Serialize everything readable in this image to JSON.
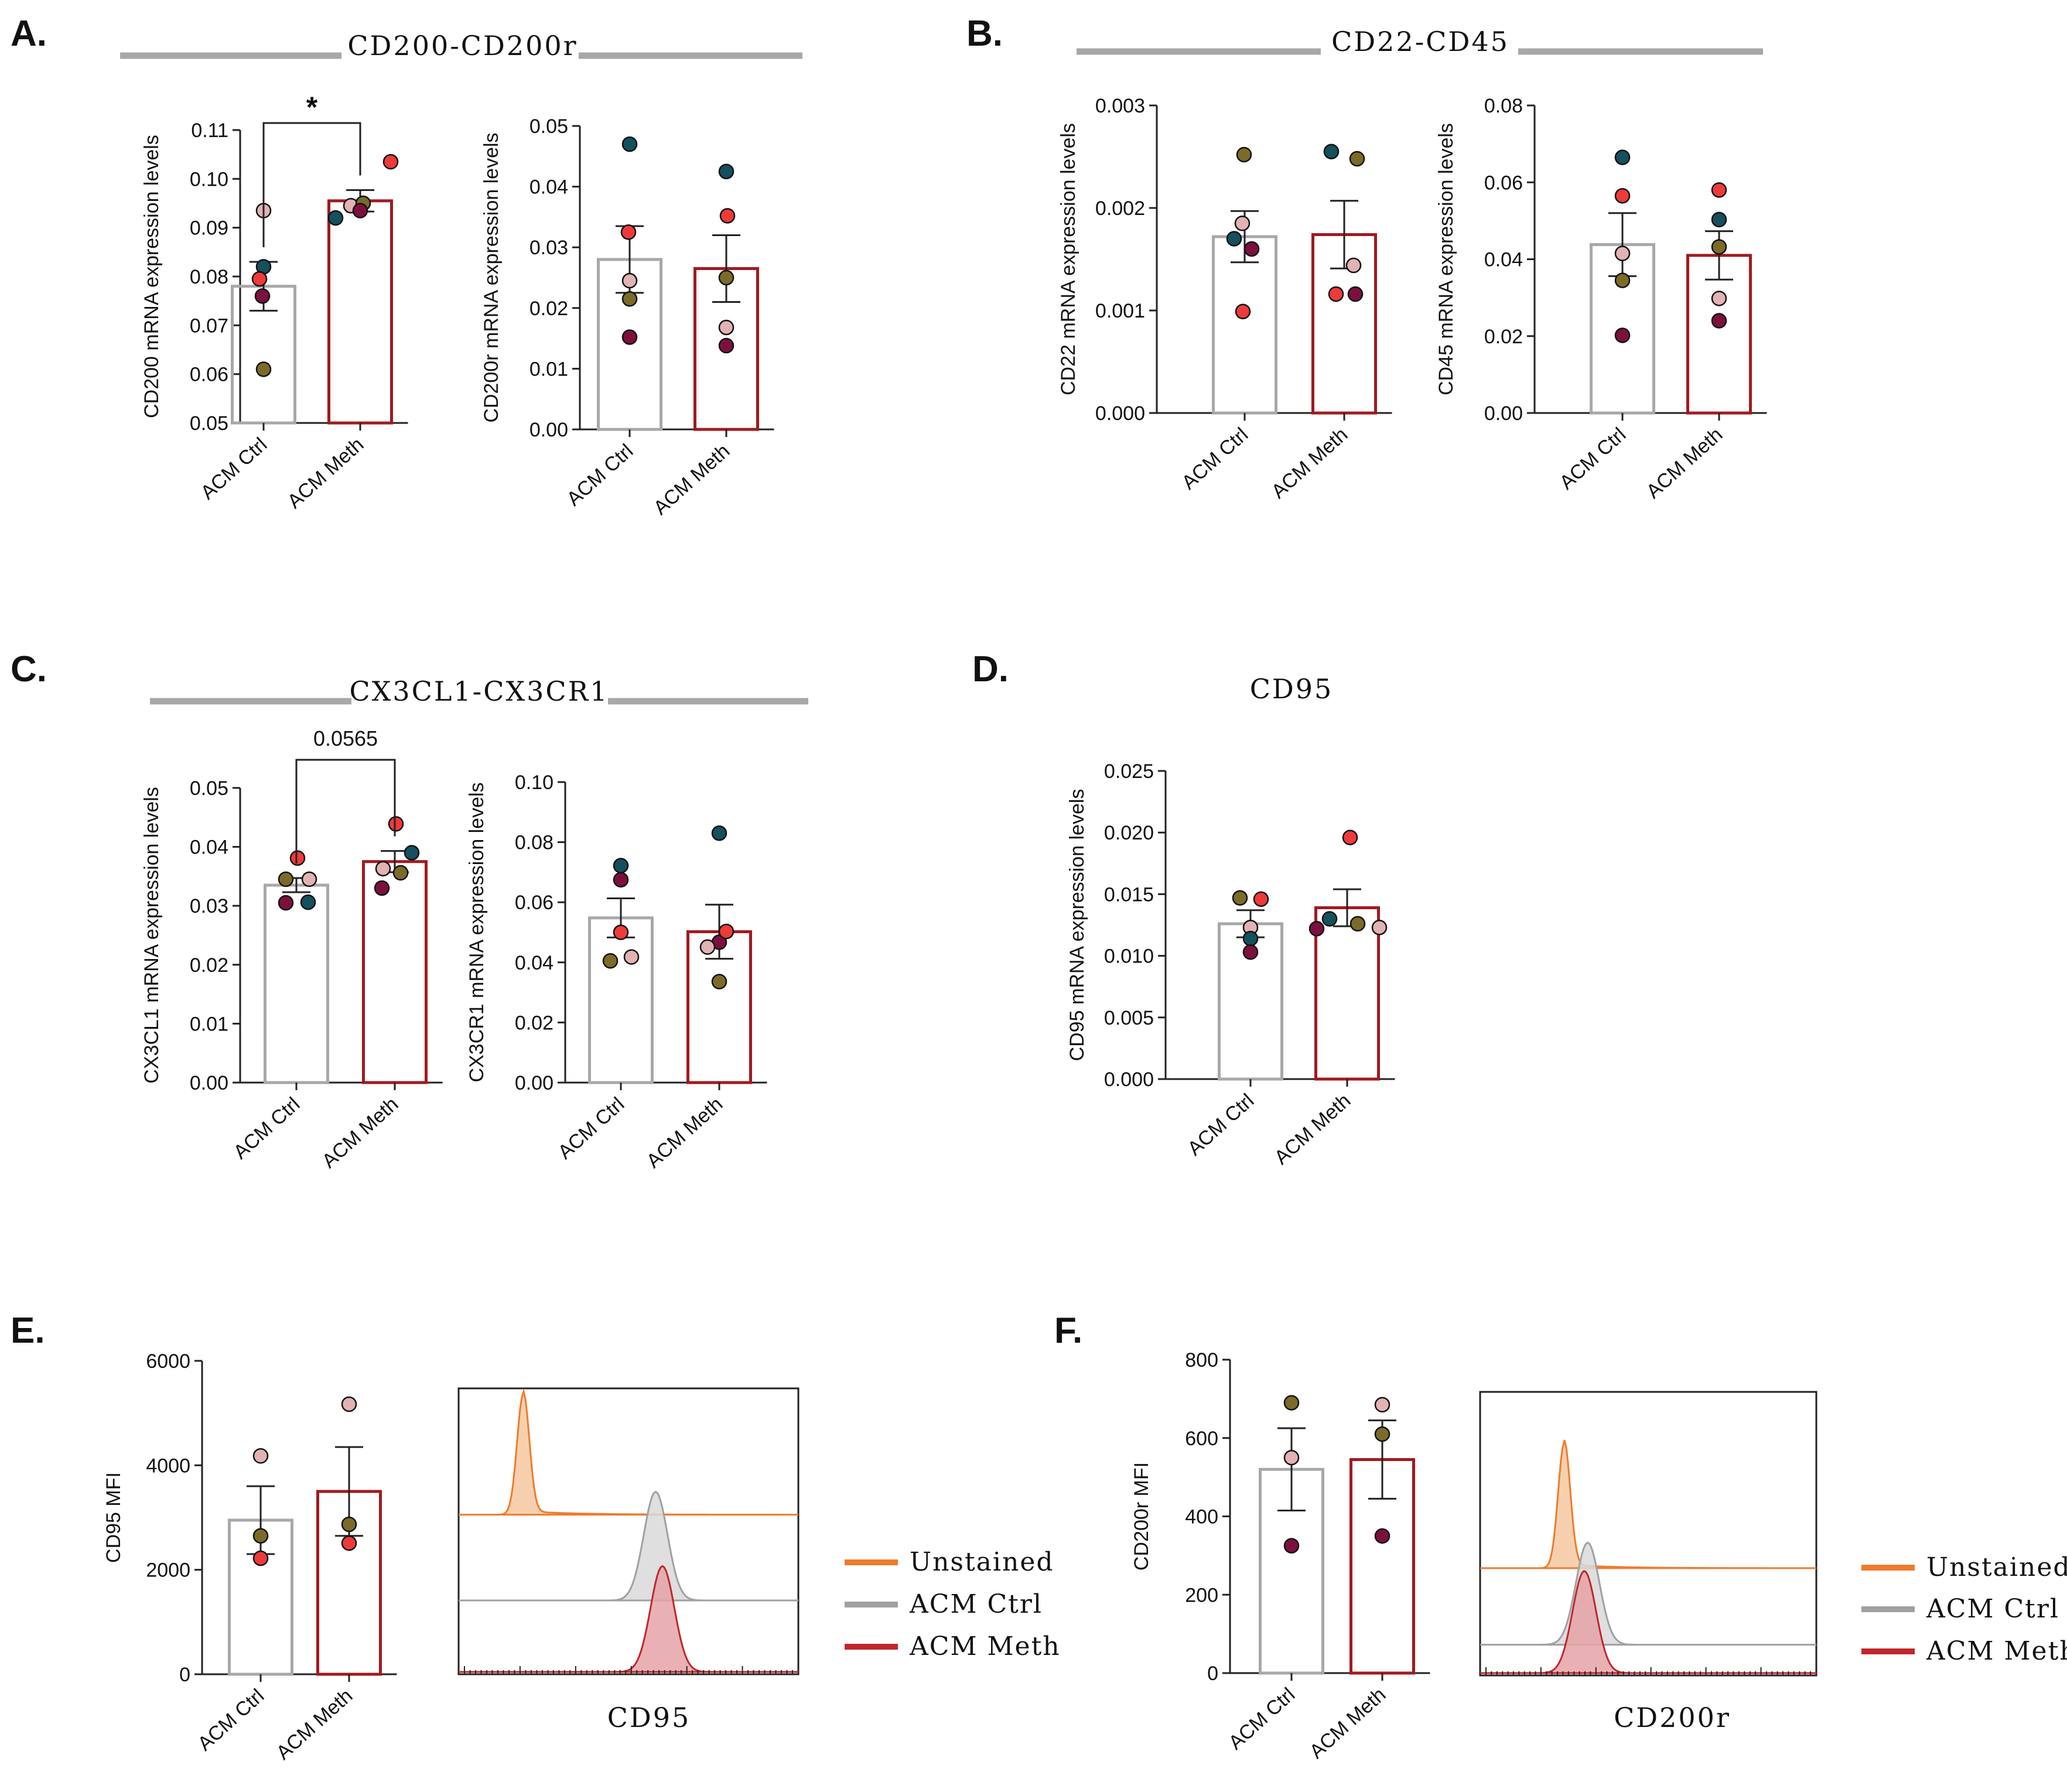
{
  "figure": {
    "panels": [
      {
        "letter": "A."
      },
      {
        "letter": "B."
      },
      {
        "letter": "C."
      },
      {
        "letter": "D."
      },
      {
        "letter": "E."
      },
      {
        "letter": "F."
      }
    ],
    "group_titles": [
      {
        "text": "CD200-CD200r"
      },
      {
        "text": "CD22-CD45"
      },
      {
        "text": "CX3CL1-CX3CR1"
      },
      {
        "text": "CD95"
      }
    ],
    "legends": [
      {
        "items": [
          "Unstained",
          "ACM Ctrl",
          "ACM Meth"
        ]
      },
      {
        "items": [
          "Unstained",
          "ACM Ctrl",
          "ACM Meth"
        ]
      }
    ]
  },
  "colors": {
    "ctrl_bar": "#a8a8a8",
    "meth_bar": "#a11a20",
    "unstained": "#ef7b2d",
    "acm_ctrl_line": "#a0a0a0",
    "acm_meth_line": "#c0272d",
    "dot_teal": "#14505e",
    "dot_red": "#ee3a3a",
    "dot_pink": "#e3b2b2",
    "dot_olive": "#7c6b28",
    "dot_maroon": "#7d0f3f"
  },
  "chart_data": [
    {
      "type": "bar",
      "panel": "A",
      "title": "CD200-CD200r",
      "ylabel": "CD200 mRNA expression levels",
      "categories": [
        "ACM Ctrl",
        "ACM Meth"
      ],
      "ylim": [
        0.05,
        0.11
      ],
      "yticks": [
        "0.05",
        "0.06",
        "0.07",
        "0.08",
        "0.09",
        "0.10",
        "0.11"
      ],
      "values": [
        0.078,
        0.0955
      ],
      "sem": [
        0.005,
        0.0022
      ],
      "points": [
        [
          0.082,
          0.0795,
          0.076,
          0.0935,
          0.061
        ],
        [
          0.092,
          0.0945,
          0.095,
          0.1035,
          0.0935
        ]
      ],
      "significance": {
        "label": "*"
      }
    },
    {
      "type": "bar",
      "panel": "A",
      "ylabel": "CD200r mRNA expression levels",
      "categories": [
        "ACM Ctrl",
        "ACM Meth"
      ],
      "ylim": [
        0,
        0.05
      ],
      "yticks": [
        "0.00",
        "0.01",
        "0.02",
        "0.03",
        "0.04",
        "0.05"
      ],
      "values": [
        0.028,
        0.0265
      ],
      "sem": [
        0.0055,
        0.0055
      ],
      "points": [
        [
          0.047,
          0.0325,
          0.0245,
          0.0215,
          0.0152
        ],
        [
          0.0425,
          0.0352,
          0.025,
          0.0168,
          0.0138
        ]
      ]
    },
    {
      "type": "bar",
      "panel": "B",
      "title": "CD22-CD45",
      "ylabel": "CD22 mRNA expression levels",
      "categories": [
        "ACM Ctrl",
        "ACM Meth"
      ],
      "ylim": [
        0,
        0.003
      ],
      "yticks": [
        "0.000",
        "0.001",
        "0.002",
        "0.003"
      ],
      "values": [
        0.00172,
        0.00174
      ],
      "sem": [
        0.00025,
        0.00033
      ],
      "points": [
        [
          0.0017,
          0.00099,
          0.00185,
          0.00252,
          0.0016
        ],
        [
          0.00255,
          0.00116,
          0.00144,
          0.00248,
          0.00116
        ]
      ]
    },
    {
      "type": "bar",
      "panel": "B",
      "ylabel": "CD45 mRNA expression levels",
      "categories": [
        "ACM Ctrl",
        "ACM Meth"
      ],
      "ylim": [
        0,
        0.08
      ],
      "yticks": [
        "0.00",
        "0.02",
        "0.04",
        "0.06",
        "0.08"
      ],
      "values": [
        0.0438,
        0.041
      ],
      "sem": [
        0.0082,
        0.0063
      ],
      "points": [
        [
          0.0665,
          0.0565,
          0.0415,
          0.0345,
          0.0202
        ],
        [
          0.0503,
          0.058,
          0.0432,
          0.0298,
          0.024
        ]
      ]
    },
    {
      "type": "bar",
      "panel": "C",
      "title": "CX3CL1-CX3CR1",
      "ylabel": "CX3CL1 mRNA expression levels",
      "categories": [
        "ACM Ctrl",
        "ACM Meth"
      ],
      "ylim": [
        0,
        0.05
      ],
      "yticks": [
        "0.00",
        "0.01",
        "0.02",
        "0.03",
        "0.04",
        "0.05"
      ],
      "values": [
        0.0335,
        0.0375
      ],
      "sem": [
        0.0012,
        0.0018
      ],
      "points": [
        [
          0.0345,
          0.0305,
          0.0345,
          0.0381,
          0.0306
        ],
        [
          0.039,
          0.0363,
          0.0439,
          0.033,
          0.0356
        ]
      ],
      "significance": {
        "label": "0.0565"
      }
    },
    {
      "type": "bar",
      "panel": "C",
      "ylabel": "CX3CR1 mRNA expression levels",
      "categories": [
        "ACM Ctrl",
        "ACM Meth"
      ],
      "ylim": [
        0,
        0.1
      ],
      "yticks": [
        "0.00",
        "0.02",
        "0.04",
        "0.06",
        "0.08",
        "0.10"
      ],
      "values": [
        0.0548,
        0.0502
      ],
      "sem": [
        0.0065,
        0.009
      ],
      "points": [
        [
          0.0722,
          0.0675,
          0.05,
          0.0405,
          0.0418
        ],
        [
          0.083,
          0.0467,
          0.0503,
          0.0336,
          0.0451
        ]
      ]
    },
    {
      "type": "bar",
      "panel": "D",
      "title": "CD95",
      "ylabel": "CD95 mRNA expression levels",
      "categories": [
        "ACM Ctrl",
        "ACM Meth"
      ],
      "ylim": [
        0,
        0.025
      ],
      "yticks": [
        "0.000",
        "0.005",
        "0.010",
        "0.015",
        "0.020",
        "0.025"
      ],
      "values": [
        0.0126,
        0.0139
      ],
      "sem": [
        0.0011,
        0.0015
      ],
      "points": [
        [
          0.0147,
          0.0146,
          0.0123,
          0.0114,
          0.0103
        ],
        [
          0.013,
          0.0196,
          0.0126,
          0.0123,
          0.0122
        ]
      ]
    },
    {
      "type": "bar",
      "panel": "E",
      "ylabel": "CD95 MFI",
      "categories": [
        "ACM Ctrl",
        "ACM Meth"
      ],
      "ylim": [
        0,
        6000
      ],
      "yticks": [
        "0",
        "2000",
        "4000",
        "6000"
      ],
      "values": [
        2950,
        3500
      ],
      "sem": [
        650,
        850
      ],
      "points": [
        [
          4180,
          2650,
          2220
        ],
        [
          5170,
          2870,
          2510
        ]
      ]
    },
    {
      "type": "bar",
      "panel": "F",
      "ylabel": "CD200r MFI",
      "categories": [
        "ACM Ctrl",
        "ACM Meth"
      ],
      "ylim": [
        0,
        800
      ],
      "yticks": [
        "0",
        "200",
        "400",
        "600",
        "800"
      ],
      "values": [
        520,
        545
      ],
      "sem": [
        105,
        100
      ],
      "points": [
        [
          690,
          550,
          325
        ],
        [
          685,
          610,
          350
        ]
      ]
    },
    {
      "type": "area",
      "panel": "E",
      "xlabel": "CD95",
      "series": [
        {
          "name": "Unstained",
          "peak": 0.19,
          "height": 0.42
        },
        {
          "name": "ACM Ctrl",
          "peak": 0.58,
          "height": 0.38
        },
        {
          "name": "ACM Meth",
          "peak": 0.6,
          "height": 0.37
        }
      ]
    },
    {
      "type": "area",
      "panel": "F",
      "xlabel": "CD200r",
      "series": [
        {
          "name": "Unstained",
          "peak": 0.25,
          "height": 0.44
        },
        {
          "name": "ACM Ctrl",
          "peak": 0.32,
          "height": 0.36
        },
        {
          "name": "ACM Meth",
          "peak": 0.31,
          "height": 0.36
        }
      ]
    }
  ]
}
